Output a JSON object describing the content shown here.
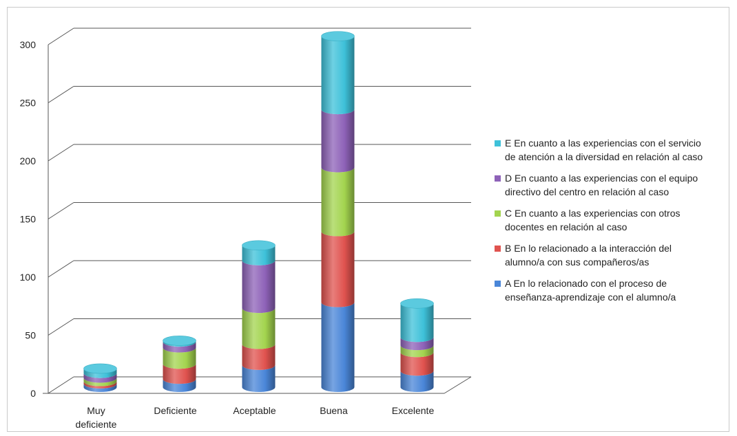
{
  "chart_data": {
    "type": "bar",
    "stacked": true,
    "style": "3d-cylinder",
    "title": "",
    "xlabel": "",
    "ylabel": "",
    "ylim": [
      0,
      300
    ],
    "yticks": [
      "0",
      "50",
      "100",
      "150",
      "200",
      "250",
      "300"
    ],
    "grid": true,
    "legend_position": "right",
    "categories": [
      "Muy\ndeficiente",
      "Deficiente",
      "Aceptable",
      "Buena",
      "Excelente"
    ],
    "series": [
      {
        "name": "A En lo relacionado con el proceso de\nenseñanza-aprendizaje con el alumno/a",
        "color": "#4a86d8",
        "values": [
          3,
          7,
          19,
          73,
          14
        ]
      },
      {
        "name": "B En lo relacionado a la interacción del\nalumno/a con sus compañeros/as",
        "color": "#e0534f",
        "values": [
          2,
          13,
          18,
          61,
          16
        ]
      },
      {
        "name": "C En cuanto a las experiencias con otros\ndocentes en relación al caso",
        "color": "#a3d44f",
        "values": [
          3,
          14,
          31,
          55,
          6
        ]
      },
      {
        "name": "D En cuanto a las experiencias con el equipo\ndirectivo del centro en relación al caso",
        "color": "#8e62b8",
        "values": [
          4,
          5,
          41,
          50,
          7
        ]
      },
      {
        "name": "E En cuanto a las experiencias con el servicio\nde atención a la diversidad en relación al caso",
        "color": "#3ec1d9",
        "values": [
          4,
          1,
          13,
          63,
          29
        ]
      }
    ]
  }
}
